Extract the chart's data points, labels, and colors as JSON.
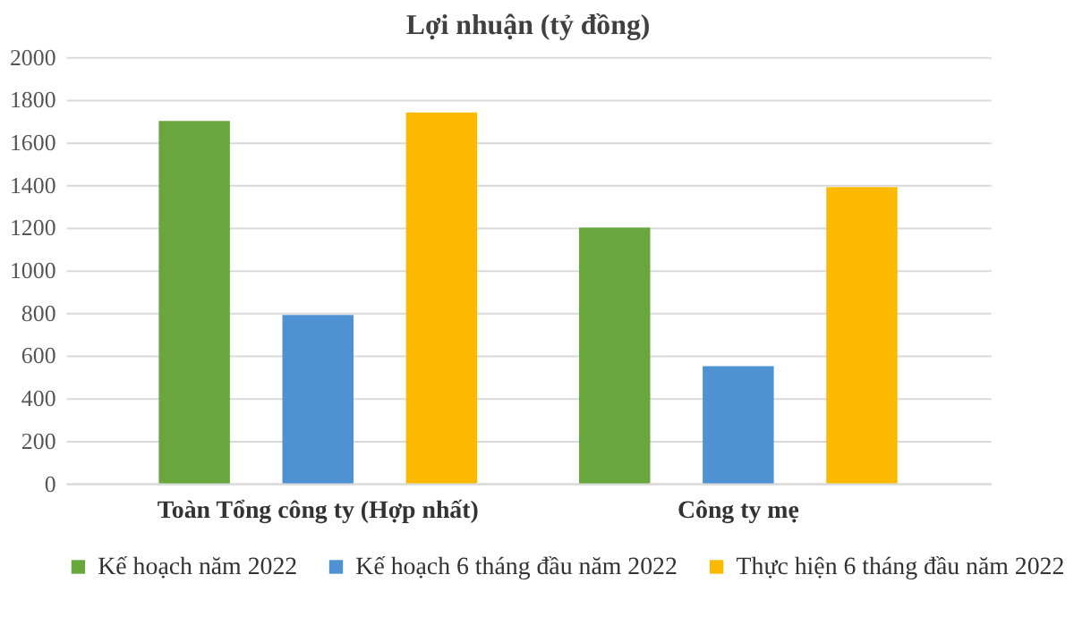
{
  "chart_data": {
    "type": "bar",
    "title": "Lợi nhuận (tỷ đồng)",
    "categories": [
      "Toàn Tổng công ty (Hợp nhất)",
      "Công ty mẹ"
    ],
    "series": [
      {
        "name": "Kế hoạch năm 2022",
        "color": "#6aa63e",
        "values": [
          1700,
          1200
        ]
      },
      {
        "name": "Kế hoạch 6 tháng đầu năm 2022",
        "color": "#4f92d3",
        "values": [
          790,
          550
        ]
      },
      {
        "name": "Thực hiện 6 tháng đầu năm 2022",
        "color": "#fbba00",
        "values": [
          1740,
          1390
        ]
      }
    ],
    "ylim": [
      0,
      2000
    ],
    "yticks": [
      0,
      200,
      400,
      600,
      800,
      1000,
      1200,
      1400,
      1600,
      1800,
      2000
    ],
    "grid": "y",
    "legend": "bottom"
  }
}
